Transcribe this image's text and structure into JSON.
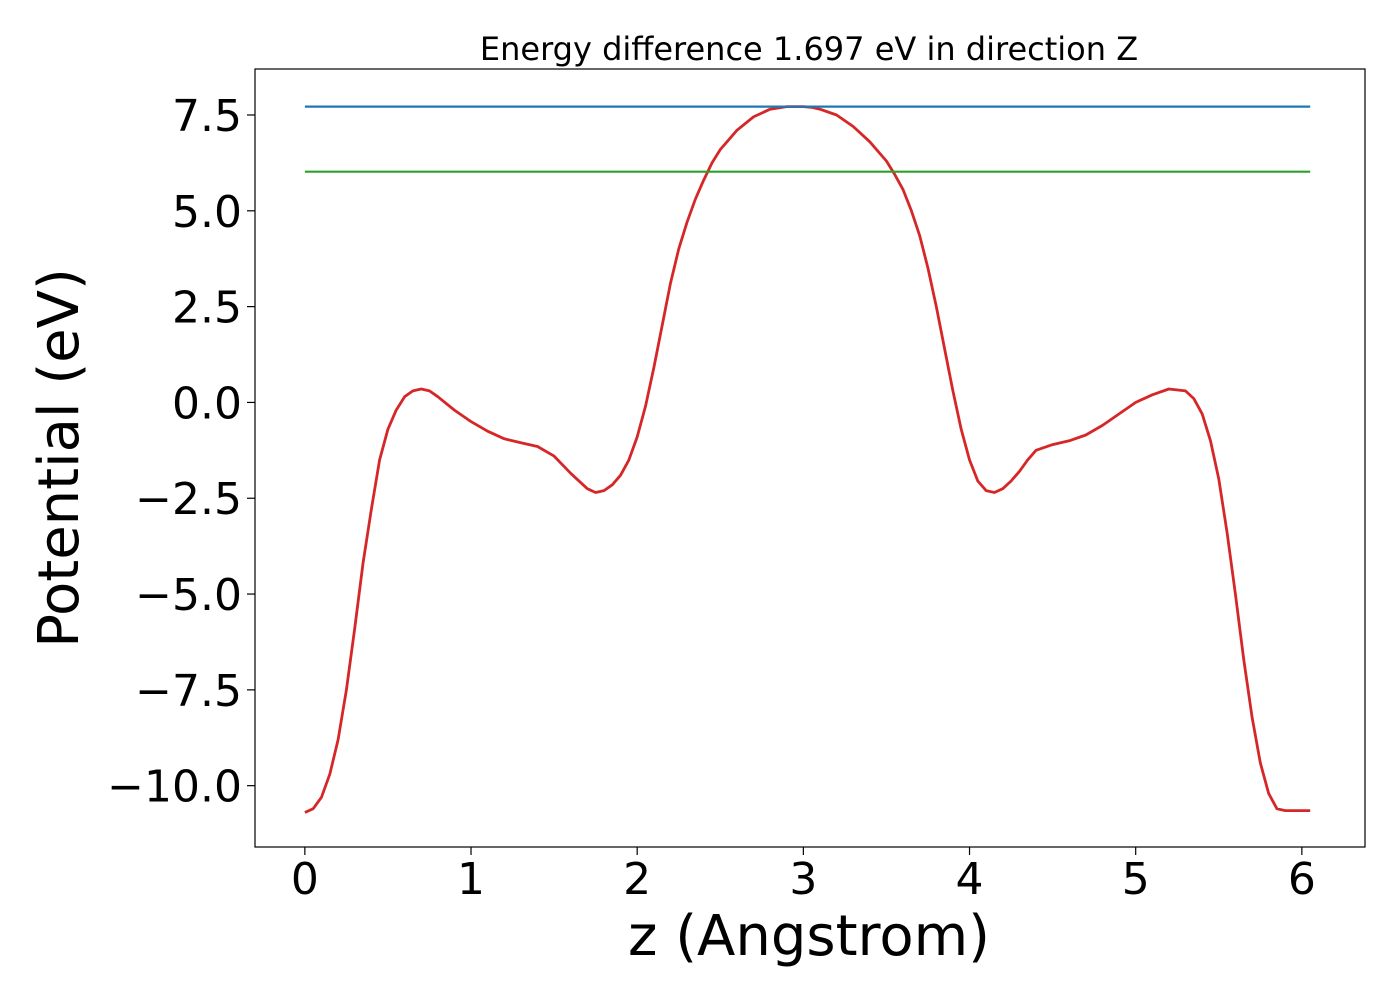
{
  "chart_data": {
    "type": "line",
    "title": "Energy difference 1.697 eV in direction Z",
    "xlabel": "z (Angstrom)",
    "ylabel": "Potential (eV)",
    "xlim": [
      -0.3,
      6.38
    ],
    "ylim": [
      -11.6,
      8.7
    ],
    "grid": false,
    "xticks": [
      0,
      1,
      2,
      3,
      4,
      5,
      6
    ],
    "xtick_labels": [
      "0",
      "1",
      "2",
      "3",
      "4",
      "5",
      "6"
    ],
    "yticks": [
      7.5,
      5.0,
      2.5,
      0.0,
      -2.5,
      -5.0,
      -7.5,
      -10.0
    ],
    "ytick_labels": [
      "7.5",
      "5.0",
      "2.5",
      "0.0",
      "−2.5",
      "−5.0",
      "−7.5",
      "−10.0"
    ],
    "series": [
      {
        "color": "#d62728",
        "kind": "curve",
        "x": [
          0.0,
          0.05,
          0.1,
          0.15,
          0.2,
          0.25,
          0.3,
          0.35,
          0.4,
          0.45,
          0.5,
          0.55,
          0.6,
          0.65,
          0.7,
          0.75,
          0.8,
          0.9,
          1.0,
          1.1,
          1.2,
          1.3,
          1.4,
          1.5,
          1.6,
          1.7,
          1.75,
          1.8,
          1.85,
          1.9,
          1.95,
          2.0,
          2.05,
          2.1,
          2.15,
          2.2,
          2.25,
          2.3,
          2.35,
          2.4,
          2.45,
          2.5,
          2.55,
          2.6,
          2.7,
          2.8,
          2.9,
          3.0,
          3.05,
          3.1,
          3.2,
          3.3,
          3.4,
          3.5,
          3.55,
          3.6,
          3.65,
          3.7,
          3.75,
          3.8,
          3.85,
          3.9,
          3.95,
          4.0,
          4.05,
          4.1,
          4.15,
          4.2,
          4.25,
          4.3,
          4.35,
          4.4,
          4.5,
          4.6,
          4.7,
          4.8,
          4.9,
          5.0,
          5.1,
          5.2,
          5.3,
          5.35,
          5.4,
          5.45,
          5.5,
          5.55,
          5.6,
          5.65,
          5.7,
          5.75,
          5.8,
          5.85,
          5.9,
          5.95,
          6.0,
          6.05
        ],
        "y": [
          -10.7,
          -10.6,
          -10.3,
          -9.7,
          -8.8,
          -7.5,
          -5.9,
          -4.2,
          -2.8,
          -1.5,
          -0.7,
          -0.2,
          0.15,
          0.3,
          0.35,
          0.3,
          0.15,
          -0.2,
          -0.5,
          -0.75,
          -0.95,
          -1.05,
          -1.15,
          -1.4,
          -1.85,
          -2.25,
          -2.35,
          -2.3,
          -2.15,
          -1.9,
          -1.5,
          -0.9,
          -0.1,
          0.9,
          2.0,
          3.1,
          4.0,
          4.7,
          5.3,
          5.8,
          6.25,
          6.6,
          6.85,
          7.1,
          7.45,
          7.65,
          7.72,
          7.72,
          7.7,
          7.65,
          7.5,
          7.2,
          6.8,
          6.3,
          5.95,
          5.55,
          5.0,
          4.35,
          3.5,
          2.5,
          1.4,
          0.3,
          -0.7,
          -1.5,
          -2.05,
          -2.3,
          -2.35,
          -2.25,
          -2.05,
          -1.8,
          -1.5,
          -1.25,
          -1.1,
          -1.0,
          -0.85,
          -0.6,
          -0.3,
          0.0,
          0.2,
          0.35,
          0.3,
          0.1,
          -0.3,
          -1.0,
          -2.0,
          -3.4,
          -5.0,
          -6.7,
          -8.2,
          -9.4,
          -10.2,
          -10.6,
          -10.65,
          -10.65,
          -10.65,
          -10.65
        ]
      },
      {
        "color": "#1f77b4",
        "kind": "hline",
        "x": [
          0.0,
          6.05
        ],
        "y": [
          7.72,
          7.72
        ]
      },
      {
        "color": "#2ca02c",
        "kind": "hline",
        "x": [
          0.0,
          6.05
        ],
        "y": [
          6.02,
          6.02
        ]
      }
    ]
  }
}
